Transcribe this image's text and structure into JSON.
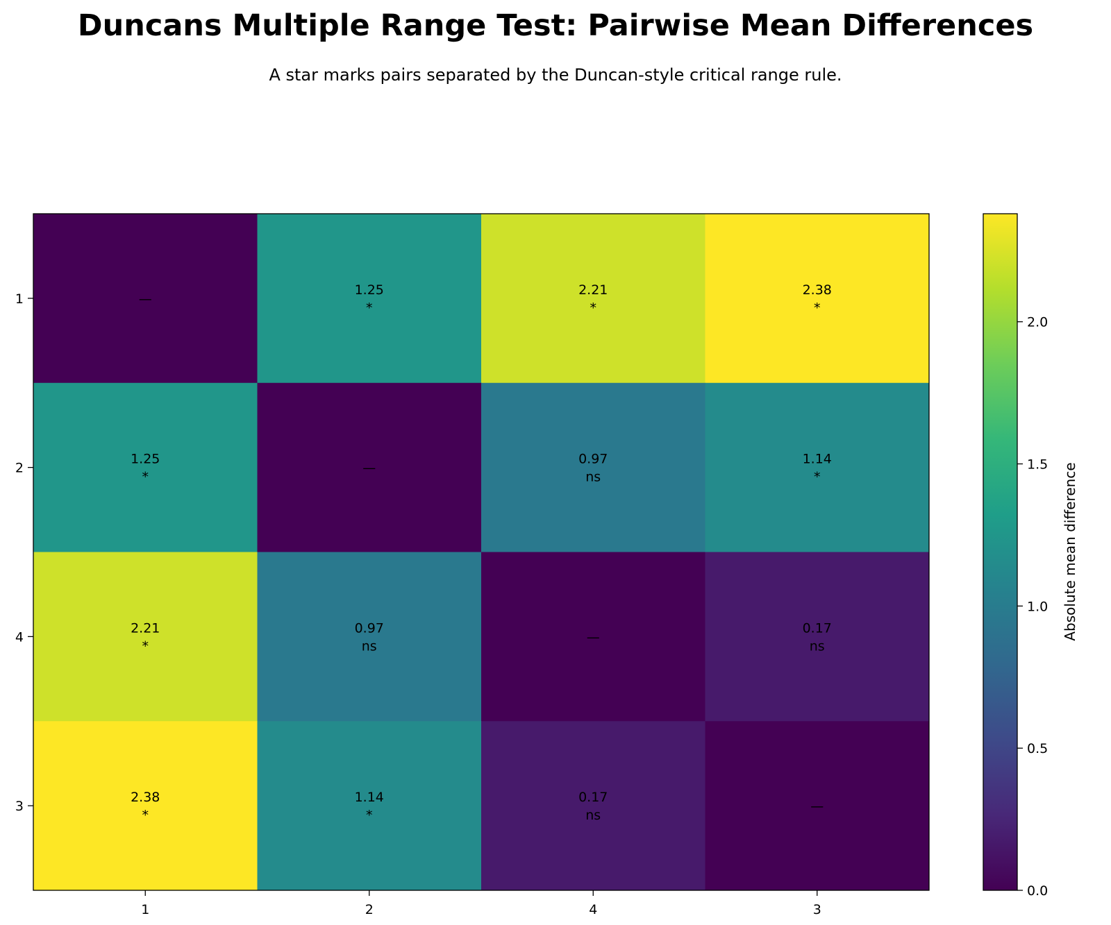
{
  "chart_data": {
    "type": "heatmap",
    "title": "Duncans Multiple Range Test: Pairwise Mean Differences",
    "subtitle": "A star marks pairs separated by the Duncan-style critical range rule.",
    "x_categories": [
      "1",
      "2",
      "4",
      "3"
    ],
    "y_categories": [
      "1",
      "2",
      "4",
      "3"
    ],
    "values": [
      [
        0.0,
        1.25,
        2.21,
        2.38
      ],
      [
        1.25,
        0.0,
        0.97,
        1.14
      ],
      [
        2.21,
        0.97,
        0.0,
        0.17
      ],
      [
        2.38,
        1.14,
        0.17,
        0.0
      ]
    ],
    "cell_labels": [
      [
        "—",
        "1.25\n*",
        "2.21\n*",
        "2.38\n*"
      ],
      [
        "1.25\n*",
        "—",
        "0.97\nns",
        "1.14\n*"
      ],
      [
        "2.21\n*",
        "0.97\nns",
        "—",
        "0.17\nns"
      ],
      [
        "2.38\n*",
        "1.14\n*",
        "0.17\nns",
        "—"
      ]
    ],
    "colorbar": {
      "label": "Absolute mean difference",
      "min": 0.0,
      "max": 2.38,
      "ticks": [
        "0.0",
        "0.5",
        "1.0",
        "1.5",
        "2.0"
      ],
      "tick_values": [
        0.0,
        0.5,
        1.0,
        1.5,
        2.0
      ],
      "colormap": "viridis"
    }
  }
}
